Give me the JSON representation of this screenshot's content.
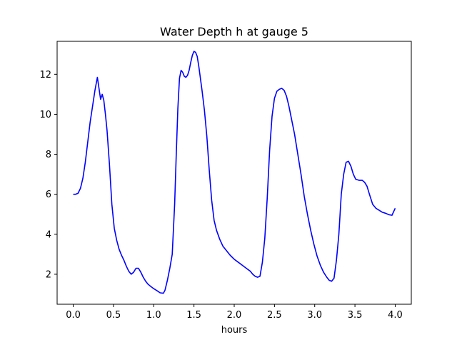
{
  "chart_data": {
    "type": "line",
    "title": "Water Depth h at gauge 5",
    "xlabel": "hours",
    "ylabel": "",
    "xlim": [
      -0.2,
      4.2
    ],
    "ylim": [
      0.5,
      13.65
    ],
    "xticks": [
      0.0,
      0.5,
      1.0,
      1.5,
      2.0,
      2.5,
      3.0,
      3.5,
      4.0
    ],
    "xtick_labels": [
      "0.0",
      "0.5",
      "1.0",
      "1.5",
      "2.0",
      "2.5",
      "3.0",
      "3.5",
      "4.0"
    ],
    "yticks": [
      2,
      4,
      6,
      8,
      10,
      12
    ],
    "ytick_labels": [
      "2",
      "4",
      "6",
      "8",
      "10",
      "12"
    ],
    "grid": false,
    "series": [
      {
        "color": "#0000ff",
        "x": [
          0.0,
          0.03,
          0.06,
          0.09,
          0.12,
          0.15,
          0.18,
          0.21,
          0.24,
          0.27,
          0.3,
          0.32,
          0.34,
          0.36,
          0.38,
          0.4,
          0.42,
          0.45,
          0.48,
          0.51,
          0.54,
          0.57,
          0.6,
          0.63,
          0.66,
          0.69,
          0.72,
          0.75,
          0.78,
          0.81,
          0.84,
          0.87,
          0.9,
          0.93,
          0.96,
          1.0,
          1.04,
          1.08,
          1.12,
          1.14,
          1.17,
          1.2,
          1.23,
          1.26,
          1.28,
          1.3,
          1.32,
          1.34,
          1.36,
          1.38,
          1.4,
          1.42,
          1.44,
          1.46,
          1.48,
          1.5,
          1.52,
          1.54,
          1.56,
          1.58,
          1.6,
          1.63,
          1.66,
          1.69,
          1.72,
          1.75,
          1.78,
          1.82,
          1.86,
          1.9,
          1.95,
          2.0,
          2.05,
          2.1,
          2.15,
          2.2,
          2.23,
          2.26,
          2.29,
          2.32,
          2.35,
          2.38,
          2.41,
          2.44,
          2.47,
          2.5,
          2.53,
          2.56,
          2.59,
          2.62,
          2.65,
          2.68,
          2.71,
          2.75,
          2.79,
          2.83,
          2.87,
          2.91,
          2.95,
          2.99,
          3.03,
          3.07,
          3.11,
          3.15,
          3.18,
          3.21,
          3.24,
          3.27,
          3.3,
          3.33,
          3.36,
          3.39,
          3.42,
          3.45,
          3.48,
          3.51,
          3.55,
          3.59,
          3.62,
          3.65,
          3.68,
          3.72,
          3.76,
          3.8,
          3.84,
          3.88,
          3.92,
          3.96,
          4.0
        ],
        "y": [
          6.0,
          6.0,
          6.05,
          6.3,
          6.8,
          7.6,
          8.6,
          9.6,
          10.4,
          11.2,
          11.85,
          11.3,
          10.75,
          11.0,
          10.7,
          10.0,
          9.2,
          7.5,
          5.5,
          4.3,
          3.7,
          3.25,
          2.95,
          2.7,
          2.4,
          2.15,
          2.0,
          2.1,
          2.3,
          2.3,
          2.1,
          1.85,
          1.65,
          1.5,
          1.4,
          1.28,
          1.18,
          1.07,
          1.05,
          1.2,
          1.7,
          2.3,
          3.0,
          5.5,
          8.0,
          10.3,
          11.8,
          12.2,
          12.1,
          11.9,
          11.85,
          11.95,
          12.2,
          12.6,
          12.95,
          13.15,
          13.1,
          12.9,
          12.4,
          11.8,
          11.2,
          10.2,
          8.9,
          7.2,
          5.7,
          4.7,
          4.2,
          3.75,
          3.4,
          3.2,
          2.95,
          2.75,
          2.6,
          2.45,
          2.3,
          2.15,
          2.0,
          1.9,
          1.85,
          1.9,
          2.6,
          3.8,
          5.8,
          8.2,
          9.9,
          10.8,
          11.15,
          11.25,
          11.3,
          11.2,
          10.9,
          10.4,
          9.8,
          9.0,
          8.0,
          7.0,
          5.9,
          5.0,
          4.2,
          3.5,
          2.9,
          2.45,
          2.1,
          1.85,
          1.7,
          1.65,
          1.8,
          2.7,
          4.0,
          6.0,
          7.0,
          7.6,
          7.65,
          7.4,
          7.0,
          6.75,
          6.7,
          6.7,
          6.6,
          6.4,
          6.0,
          5.5,
          5.3,
          5.2,
          5.1,
          5.05,
          4.98,
          4.95,
          5.3
        ]
      }
    ]
  }
}
